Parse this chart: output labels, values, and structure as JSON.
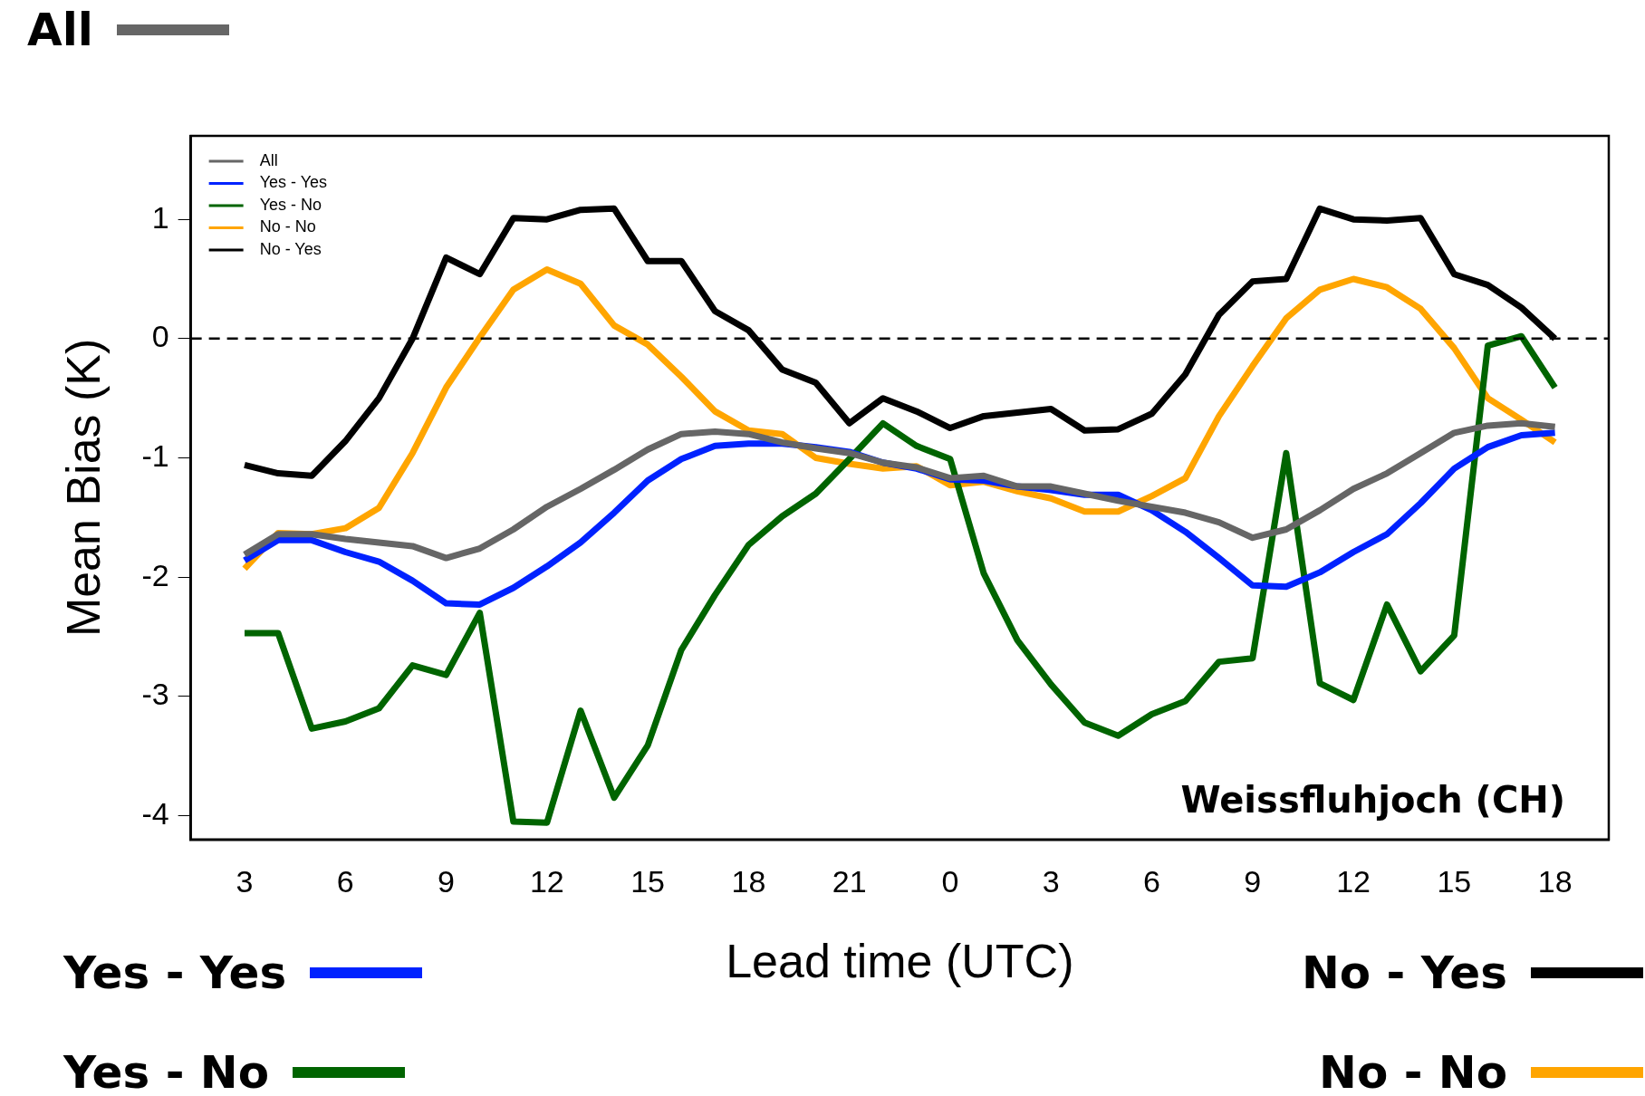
{
  "chart_data": {
    "type": "line",
    "xlabel": "Lead time (UTC)",
    "ylabel": "Mean Bias (K)",
    "categories": [
      "3",
      null,
      null,
      "6",
      null,
      null,
      "9",
      null,
      null,
      "12",
      null,
      null,
      "15",
      null,
      null,
      "18",
      null,
      null,
      "21",
      null,
      null,
      "0",
      null,
      null,
      "3",
      null,
      null,
      "6",
      null,
      null,
      "9",
      null,
      null,
      "12",
      null,
      null,
      "15",
      null,
      null,
      "18"
    ],
    "ylim": [
      -4.2,
      1.7
    ],
    "yticks": [
      -4,
      -3,
      -2,
      -1,
      0,
      1
    ],
    "series": [
      {
        "name": "All",
        "color": "#666666",
        "values": [
          -1.81,
          -1.64,
          -1.64,
          -1.68,
          -1.71,
          -1.74,
          -1.84,
          -1.76,
          -1.6,
          -1.41,
          -1.26,
          -1.1,
          -0.93,
          -0.8,
          -0.78,
          -0.8,
          -0.87,
          -0.92,
          -0.96,
          -1.04,
          -1.08,
          -1.17,
          -1.15,
          -1.24,
          -1.24,
          -1.3,
          -1.36,
          -1.41,
          -1.46,
          -1.54,
          -1.67,
          -1.6,
          -1.44,
          -1.26,
          -1.13,
          -0.96,
          -0.79,
          -0.73,
          -0.71,
          -0.74
        ]
      },
      {
        "name": "Yes - Yes",
        "color": "#0022ff",
        "values": [
          -1.86,
          -1.69,
          -1.69,
          -1.79,
          -1.87,
          -2.03,
          -2.22,
          -2.23,
          -2.09,
          -1.91,
          -1.71,
          -1.46,
          -1.19,
          -1.01,
          -0.9,
          -0.88,
          -0.88,
          -0.91,
          -0.95,
          -1.04,
          -1.09,
          -1.18,
          -1.19,
          -1.24,
          -1.27,
          -1.31,
          -1.31,
          -1.44,
          -1.62,
          -1.84,
          -2.07,
          -2.08,
          -1.96,
          -1.79,
          -1.64,
          -1.38,
          -1.09,
          -0.91,
          -0.81,
          -0.79
        ]
      },
      {
        "name": "Yes - No",
        "color": "#006400",
        "values": [
          -2.47,
          -2.47,
          -3.27,
          -3.21,
          -3.1,
          -2.74,
          -2.82,
          -2.3,
          -4.05,
          -4.06,
          -3.12,
          -3.85,
          -3.41,
          -2.61,
          -2.15,
          -1.73,
          -1.49,
          -1.3,
          -1.01,
          -0.71,
          -0.9,
          -1.01,
          -1.97,
          -2.53,
          -2.9,
          -3.22,
          -3.33,
          -3.15,
          -3.04,
          -2.71,
          -2.68,
          -0.96,
          -2.89,
          -3.03,
          -2.23,
          -2.79,
          -2.49,
          -0.06,
          0.02,
          -0.41
        ]
      },
      {
        "name": "No - No",
        "color": "#ffa500",
        "values": [
          -1.93,
          -1.63,
          -1.64,
          -1.59,
          -1.42,
          -0.96,
          -0.41,
          0.01,
          0.41,
          0.58,
          0.46,
          0.11,
          -0.05,
          -0.32,
          -0.61,
          -0.77,
          -0.8,
          -1.0,
          -1.05,
          -1.09,
          -1.07,
          -1.23,
          -1.2,
          -1.28,
          -1.34,
          -1.45,
          -1.45,
          -1.32,
          -1.17,
          -0.65,
          -0.23,
          0.17,
          0.41,
          0.5,
          0.43,
          0.25,
          -0.08,
          -0.5,
          -0.68,
          -0.87
        ]
      },
      {
        "name": "No - Yes",
        "color": "#000000",
        "values": [
          -1.06,
          -1.13,
          -1.15,
          -0.86,
          -0.5,
          0,
          0.68,
          0.54,
          1.01,
          1.0,
          1.08,
          1.09,
          0.65,
          0.65,
          0.23,
          0.07,
          -0.26,
          -0.37,
          -0.71,
          -0.5,
          -0.61,
          -0.75,
          -0.65,
          -0.62,
          -0.59,
          -0.77,
          -0.76,
          -0.63,
          -0.3,
          0.2,
          0.48,
          0.5,
          1.09,
          1.0,
          0.99,
          1.01,
          0.54,
          0.45,
          0.26,
          0
        ]
      }
    ],
    "ref_lines": [
      {
        "axis": "y",
        "value": 0,
        "color": "#000000",
        "line_style": "dashed"
      }
    ],
    "annotations": [
      "Weissfluhjoch (CH)"
    ],
    "legend": "top left",
    "grid": false,
    "marker": "none",
    "line_style": "solid"
  }
}
